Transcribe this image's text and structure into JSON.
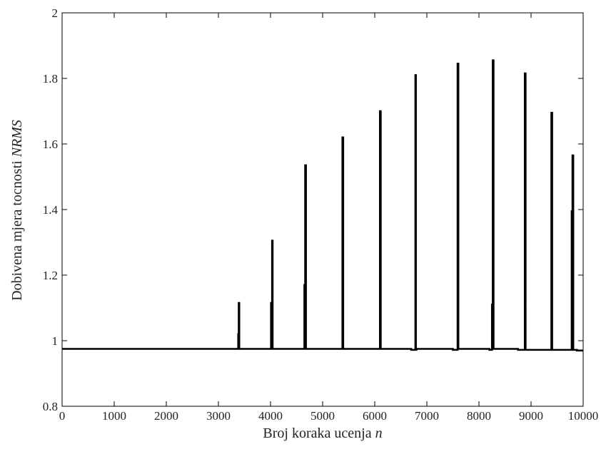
{
  "chart_data": {
    "type": "line",
    "xlabel": "Broj koraka ucenja ",
    "xlabel_var": "n",
    "ylabel": "Dobivena mjera tocnosti ",
    "ylabel_var": "NRMS",
    "xlim": [
      0,
      10000
    ],
    "ylim": [
      0.8,
      2
    ],
    "xticks": [
      0,
      1000,
      2000,
      3000,
      4000,
      5000,
      6000,
      7000,
      8000,
      9000,
      10000
    ],
    "yticks": [
      0.8,
      1,
      1.2,
      1.4,
      1.6,
      1.8,
      2
    ],
    "ytick_labels": [
      "0.8",
      "1",
      "1.2",
      "1.4",
      "1.6",
      "1.8",
      "2"
    ],
    "grid": false,
    "baseline": 0.975,
    "line_color": "#000000",
    "series": [
      {
        "x": [
          0,
          3000,
          3380,
          3380,
          3390,
          3390,
          3400,
          3400,
          3410,
          3410,
          4010,
          4010,
          4030,
          4030,
          4040,
          4040,
          4650,
          4650,
          4665,
          4665,
          4680,
          4680,
          5380,
          5380,
          5395,
          5395,
          6100,
          6100,
          6115,
          6115,
          6700,
          6700,
          6780,
          6780,
          6790,
          6790,
          6800,
          6800,
          7500,
          7500,
          7590,
          7590,
          7605,
          7605,
          8200,
          8200,
          8250,
          8250,
          8265,
          8265,
          8280,
          8280,
          8300,
          8300,
          8750,
          8750,
          8880,
          8880,
          8895,
          8895,
          9200,
          9200,
          9390,
          9390,
          9405,
          9405,
          9600,
          9600,
          9780,
          9780,
          9795,
          9795,
          9810,
          9810,
          9880,
          9880,
          10000
        ],
        "y": [
          0.975,
          0.975,
          0.975,
          1.02,
          1.02,
          1.115,
          1.115,
          0.975,
          0.975,
          0.975,
          0.975,
          1.115,
          1.115,
          1.305,
          1.305,
          0.975,
          0.975,
          1.17,
          1.17,
          1.535,
          1.535,
          0.975,
          0.975,
          1.62,
          1.62,
          0.975,
          0.975,
          1.7,
          1.7,
          0.975,
          0.975,
          0.972,
          0.972,
          1.81,
          1.81,
          0.972,
          0.972,
          0.975,
          0.975,
          0.972,
          0.972,
          1.845,
          1.845,
          0.975,
          0.975,
          0.972,
          0.972,
          1.11,
          1.11,
          1.855,
          1.855,
          0.975,
          0.975,
          0.975,
          0.975,
          0.972,
          0.972,
          1.815,
          1.815,
          0.972,
          0.972,
          0.972,
          0.972,
          1.695,
          1.695,
          0.972,
          0.972,
          0.972,
          0.972,
          1.395,
          1.395,
          1.565,
          1.565,
          0.972,
          0.972,
          0.97,
          0.97
        ]
      }
    ]
  }
}
